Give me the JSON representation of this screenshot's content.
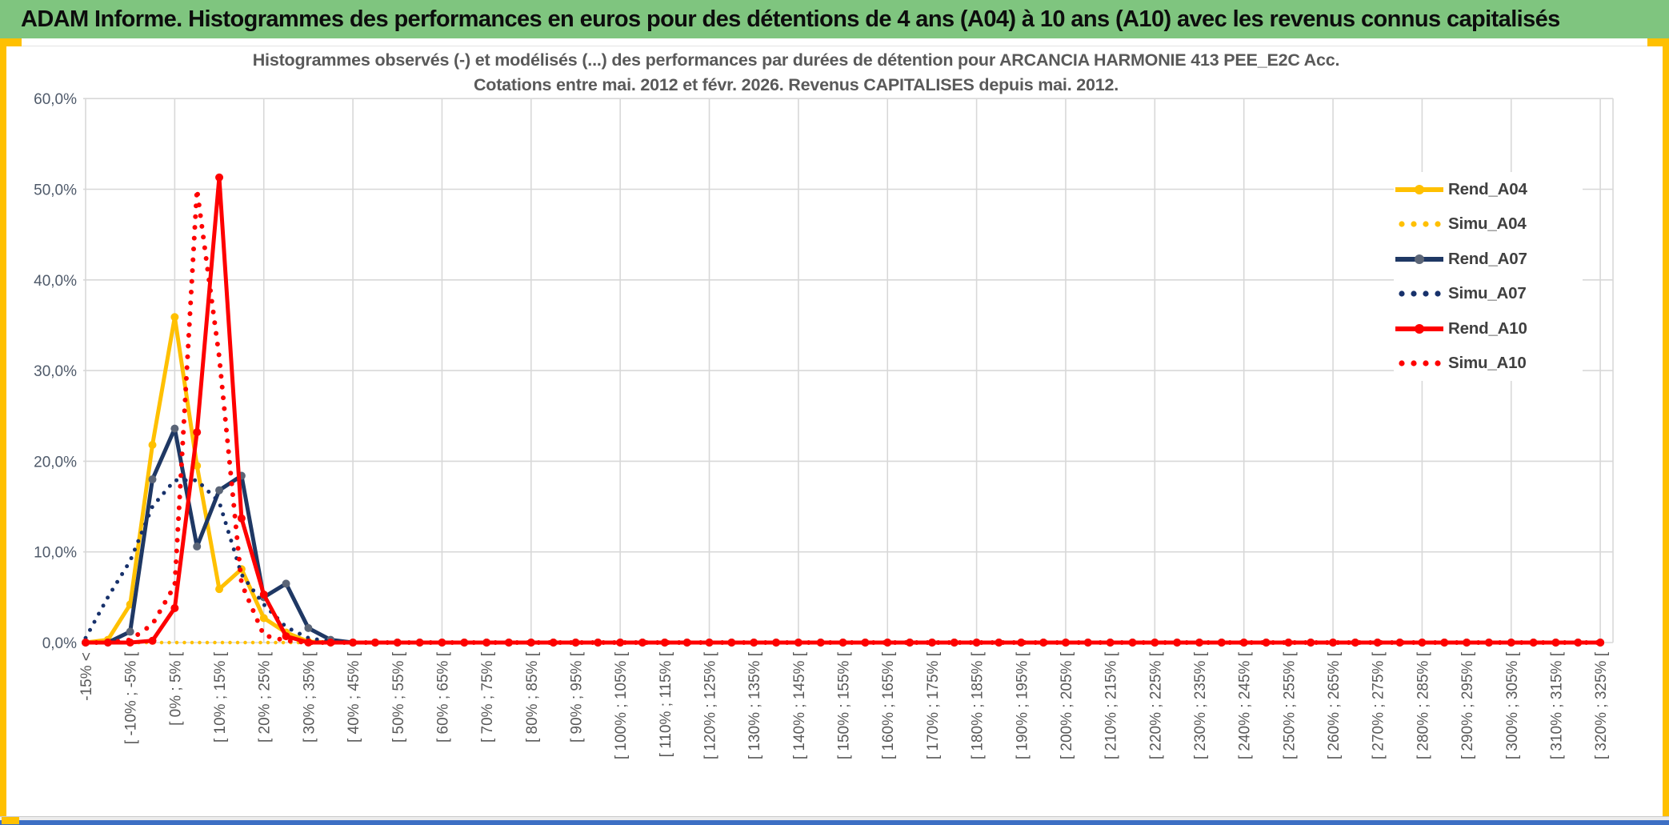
{
  "header": {
    "title": "ADAM Informe. Histogrammes des performances en euros pour des détentions de 4 ans (A04) à 10 ans (A10) avec les revenus connus capitalisés"
  },
  "chart_data": {
    "type": "line",
    "title_line1": "Histogrammes observés (-) et modélisés (...) des performances par durées de détention pour ARCANCIA HARMONIE 413 PEE_E2C Acc.",
    "title_line2": "Cotations entre mai. 2012 et févr. 2026. Revenus CAPITALISES depuis mai. 2012.",
    "ylabel": "",
    "xlabel": "",
    "ylim": [
      0,
      60
    ],
    "y_ticks": [
      "60,0%",
      "50,0%",
      "40,0%",
      "30,0%",
      "20,0%",
      "10,0%",
      "0,0%"
    ],
    "grid": true,
    "legend_position": "inside-right",
    "bins_total": 69,
    "x_label_every": 2,
    "x_labels_shown": [
      "-15% <",
      "[ -10% ; -5% [",
      "[ 0% ; 5% [",
      "[ 10% ; 15% [",
      "[ 20% ; 25% [",
      "[ 30% ; 35% [",
      "[ 40% ; 45% [",
      "[ 50% ; 55% [",
      "[ 60% ; 65% [",
      "[ 70% ; 75% [",
      "[ 80% ; 85% [",
      "[ 90% ; 95% [",
      "[ 100% ; 105% [",
      "[ 110% ; 115% [",
      "[ 120% ; 125% [",
      "[ 130% ; 135% [",
      "[ 140% ; 145% [",
      "[ 150% ; 155% [",
      "[ 160% ; 165% [",
      "[ 170% ; 175% [",
      "[ 180% ; 185% [",
      "[ 190% ; 195% [",
      "[ 200% ; 205% [",
      "[ 210% ; 215% [",
      "[ 220% ; 225% [",
      "[ 230% ; 235% [",
      "[ 240% ; 245% [",
      "[ 250% ; 255% [",
      "[ 260% ; 265% [",
      "[ 270% ; 275% [",
      "[ 280% ; 285% [",
      "[ 290% ; 295% [",
      "[ 300% ; 305% [",
      "[ 310% ; 315% [",
      "[ 320% ; 325% ["
    ],
    "series": [
      {
        "name": "Rend_A04",
        "color": "#FFC000",
        "marker_color": "#FFC000",
        "style": "solid",
        "values": [
          0,
          0.3,
          4.2,
          21.8,
          35.9,
          19.5,
          5.9,
          8.1,
          2.7,
          1.1,
          0.1,
          0
        ]
      },
      {
        "name": "Simu_A04",
        "color": "#FFC000",
        "style": "dotted",
        "dot_size": 4.5,
        "dot_gap": 9.5,
        "values": [
          0,
          0,
          0,
          0,
          0,
          0,
          0,
          0,
          0,
          0,
          0,
          0
        ]
      },
      {
        "name": "Rend_A07",
        "color": "#1F3864",
        "marker_color": "#5B6577",
        "style": "solid",
        "values": [
          0,
          0,
          1.2,
          18,
          23.6,
          10.6,
          16.8,
          18.4,
          5,
          6.5,
          1.6,
          0.3
        ]
      },
      {
        "name": "Simu_A07",
        "color": "#17316B",
        "style": "dotted",
        "dot_size": 5,
        "dot_gap": 11.5,
        "values": [
          0.5,
          5,
          9,
          15,
          17.9,
          17.9,
          15.5,
          7.5,
          4.2,
          1.7,
          0.5,
          0.1
        ]
      },
      {
        "name": "Rend_A10",
        "color": "#FE0000",
        "marker_color": "#FE0000",
        "style": "solid",
        "values": [
          0,
          0,
          0,
          0.2,
          3.8,
          23.2,
          51.3,
          13.7,
          5.3,
          0.7,
          0,
          0
        ]
      },
      {
        "name": "Simu_A10",
        "color": "#FE0000",
        "style": "dotted",
        "dot_size": 6,
        "dot_gap": 13.5,
        "values": [
          0,
          0,
          0.3,
          2,
          6.3,
          50,
          31.5,
          6.5,
          0.8,
          0.2,
          0,
          0
        ]
      }
    ]
  },
  "colors": {
    "header_green": "#7FC57F",
    "accent_gold": "#FFC000",
    "bottom_bar_blue": "#3D6FC4",
    "grid": "#D8D8D8",
    "axis_text": "#4F5A6A",
    "x_axis_text": "#595959",
    "title_text": "#595959"
  }
}
